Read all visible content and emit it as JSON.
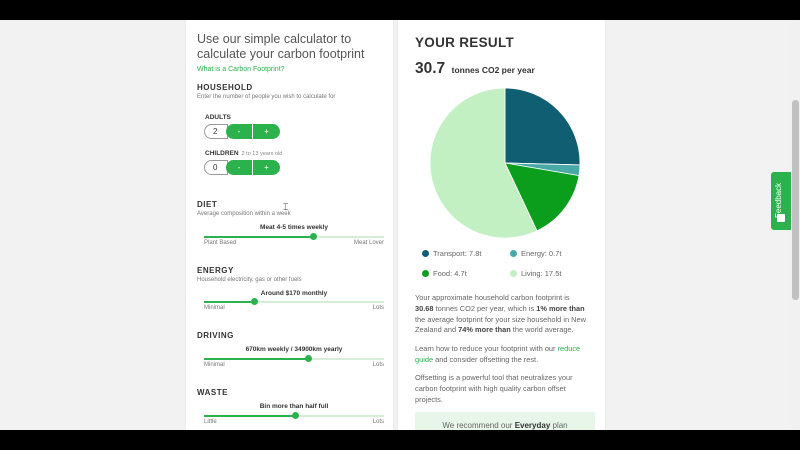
{
  "calculator": {
    "title": "Use our simple calculator to calculate your carbon footprint",
    "link": "What is a Carbon Footprint?"
  },
  "household": {
    "title": "HOUSEHOLD",
    "subtitle": "Enter the number of people you wish to calculate for",
    "adults": {
      "label": "ADULTS",
      "value": "2",
      "minus": "-",
      "plus": "+"
    },
    "children": {
      "label": "CHILDREN",
      "hint": "2 to 13 years old",
      "value": "0",
      "minus": "-",
      "plus": "+"
    }
  },
  "diet": {
    "title": "DIET",
    "subtitle": "Average composition within a week",
    "value": "Meat 4-5 times weekly",
    "min": "Plant Based",
    "max": "Meat Lover",
    "level": 0.61
  },
  "energy": {
    "title": "ENERGY",
    "subtitle": "Household electricity, gas or other fuels",
    "value": "Around $170 monthly",
    "min": "Minimal",
    "max": "Lots",
    "level": 0.28
  },
  "driving": {
    "title": "DRIVING",
    "subtitle": "",
    "value": "670km weekly / 34900km yearly",
    "min": "Minimal",
    "max": "Lots",
    "level": 0.58
  },
  "waste": {
    "title": "WASTE",
    "subtitle": "",
    "value": "Bin more than half full",
    "min": "Little",
    "max": "Lots",
    "level": 0.51
  },
  "result": {
    "title": "YOUR RESULT",
    "total": "30.7",
    "unit": "tonnes CO2 per year"
  },
  "chart_data": {
    "type": "pie",
    "categories": [
      "Transport",
      "Energy",
      "Food",
      "Living"
    ],
    "values": [
      7.8,
      0.7,
      4.7,
      17.5
    ],
    "colors": [
      "#0f5e72",
      "#48a9a6",
      "#0b9e1d",
      "#c3f0c2"
    ],
    "legend": [
      "Transport: 7.8t",
      "Energy: 0.7t",
      "Food: 4.7t",
      "Living: 17.5t"
    ]
  },
  "summary": {
    "p1_a": "Your approximate household carbon footprint is ",
    "p1_total": "30.68",
    "p1_b": " tonnes CO2 per year, which is ",
    "p1_cmp1": "1% more than",
    "p1_c": " the average footprint for your size household in New Zealand and ",
    "p1_cmp2": "74% more than",
    "p1_d": " the world average.",
    "p2_a": "Learn how to reduce your footprint with our ",
    "p2_link": "reduce guide",
    "p2_b": " and consider offsetting the rest.",
    "p3": "Offsetting is a powerful tool that neutralizes your carbon footprint with high quality carbon offset projects."
  },
  "recommend": {
    "a": "We recommend our ",
    "plan": "Everyday",
    "b": " plan"
  },
  "feedback": {
    "label": "Feedback"
  }
}
